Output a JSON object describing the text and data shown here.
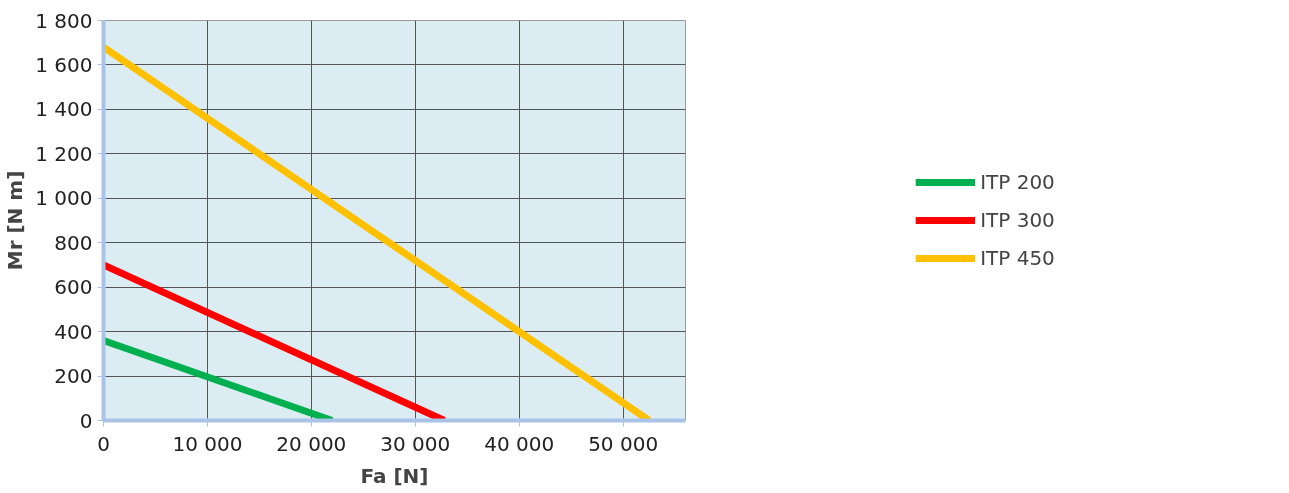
{
  "chart_data": {
    "type": "line",
    "xlabel": "Fa [N]",
    "ylabel": "Mr [N m]",
    "series": [
      {
        "name": "ITP 200",
        "color": "#00b050",
        "x": [
          0,
          22000
        ],
        "values": [
          360,
          0
        ]
      },
      {
        "name": "ITP 300",
        "color": "#ff0000",
        "x": [
          0,
          32800
        ],
        "values": [
          700,
          0
        ]
      },
      {
        "name": "ITP 450",
        "color": "#ffc000",
        "x": [
          0,
          52500
        ],
        "values": [
          1680,
          0
        ]
      }
    ],
    "xlim": [
      0,
      56000
    ],
    "ylim": [
      0,
      1800
    ],
    "xticks": [
      0,
      {
        "value": 10000,
        "label": "10 000"
      },
      {
        "value": 20000,
        "label": "20 000"
      },
      {
        "value": 30000,
        "label": "30 000"
      },
      {
        "value": 40000,
        "label": "40 000"
      },
      {
        "value": 50000,
        "label": "50 000"
      }
    ],
    "yticks": [
      0,
      200,
      400,
      600,
      800,
      {
        "value": 1000,
        "label": "1 000"
      },
      {
        "value": 1200,
        "label": "1 200"
      },
      {
        "value": 1400,
        "label": "1 400"
      },
      {
        "value": 1600,
        "label": "1 600"
      },
      {
        "value": 1800,
        "label": "1 800"
      }
    ],
    "grid": true,
    "legend": "right",
    "line_style": "solid",
    "marker": "none"
  }
}
